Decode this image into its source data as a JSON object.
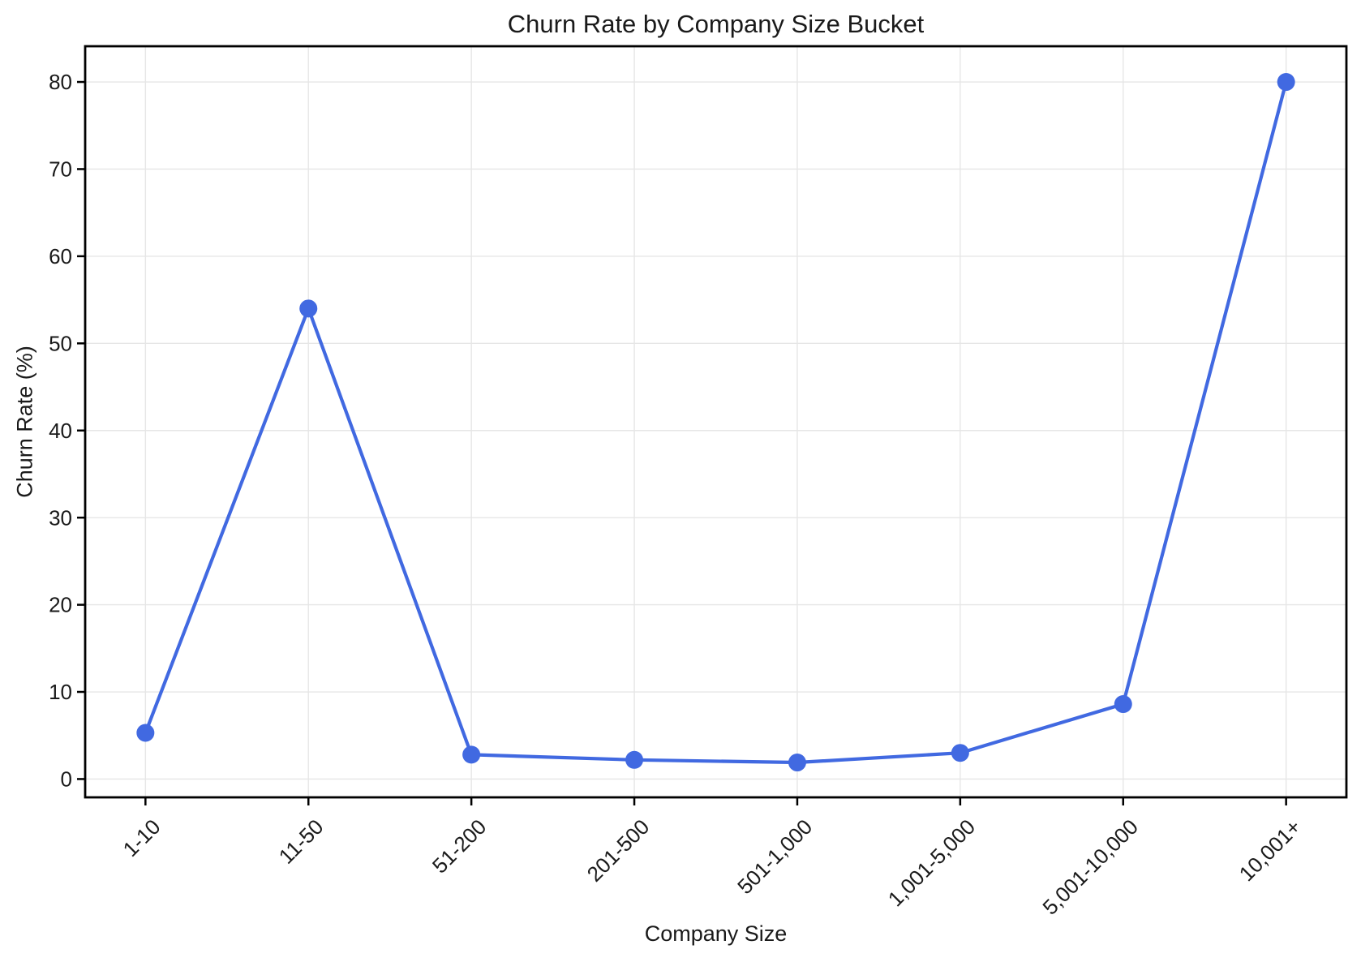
{
  "figure": {
    "background": "#ffffff"
  },
  "chart_data": {
    "type": "line",
    "title": "Churn Rate by Company Size Bucket",
    "xlabel": "Company Size",
    "ylabel": "Churn Rate (%)",
    "categories": [
      "1-10",
      "11-50",
      "51-200",
      "201-500",
      "501-1,000",
      "1,001-5,000",
      "5,001-10,000",
      "10,001+"
    ],
    "series": [
      {
        "name": "Churn Rate",
        "values": [
          5.3,
          54,
          2.8,
          2.2,
          1.9,
          3.0,
          8.6,
          80
        ]
      }
    ],
    "yticks": [
      0,
      10,
      20,
      30,
      40,
      50,
      60,
      70,
      80
    ],
    "ylim": [
      -2.1,
      84.1
    ],
    "xlim": [
      -0.37,
      7.37
    ],
    "x_tick_rotation": 45,
    "grid": true,
    "legend_position": "none",
    "line_color": "#4169E1",
    "marker": "circle",
    "marker_radius": 11,
    "line_width": 4.2,
    "grid_color": "#e6e6e6",
    "axis_color": "#000000",
    "text_color": "#1a1a1a"
  }
}
